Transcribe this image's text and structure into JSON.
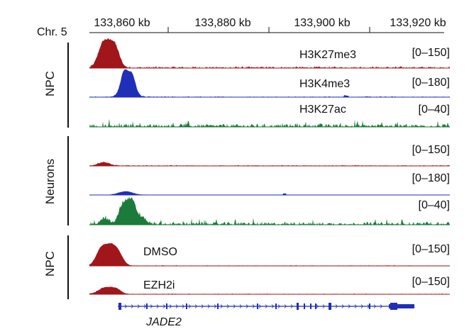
{
  "figure": {
    "chromosome_label": "Chr. 5",
    "coordinates": [
      "133,860 kb",
      "133,880 kb",
      "133,900 kb",
      "133,920 kb"
    ],
    "groups": [
      {
        "label": "NPC"
      },
      {
        "label": "Neurons"
      },
      {
        "label": "NPC"
      }
    ],
    "tracks": [
      {
        "mark": "H3K27me3",
        "range": "[0–150]",
        "color": "#a0161b"
      },
      {
        "mark": "H3K4me3",
        "range": "[0–180]",
        "color": "#1f2fb8"
      },
      {
        "mark": "H3K27ac",
        "range": "[0–40]",
        "color": "#1c7a3a"
      },
      {
        "mark": "",
        "range": "[0–150]",
        "color": "#a0161b"
      },
      {
        "mark": "",
        "range": "[0–180]",
        "color": "#1f2fb8"
      },
      {
        "mark": "",
        "range": "[0–40]",
        "color": "#1c7a3a"
      },
      {
        "mark": "DMSO",
        "range": "[0–150]",
        "color": "#a0161b"
      },
      {
        "mark": "EZH2i",
        "range": "[0–150]",
        "color": "#a0161b"
      }
    ],
    "gene": {
      "name": "JADE2",
      "color": "#1f2fb8"
    }
  }
}
